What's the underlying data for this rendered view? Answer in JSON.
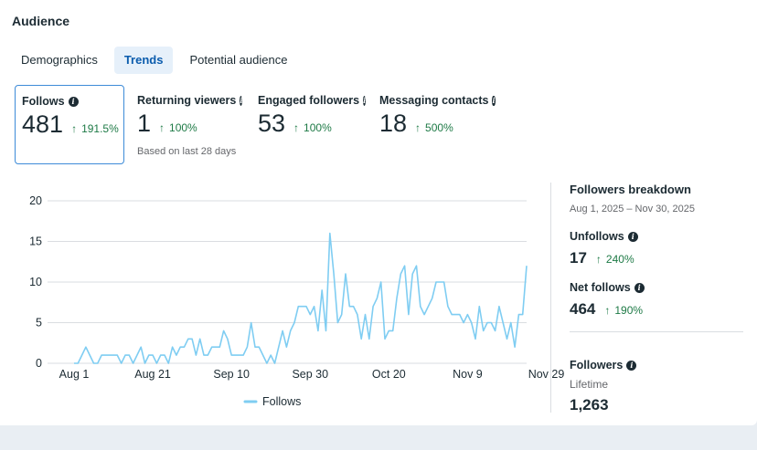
{
  "page": {
    "title": "Audience"
  },
  "tabs": [
    {
      "label": "Demographics",
      "active": false
    },
    {
      "label": "Trends",
      "active": true
    },
    {
      "label": "Potential audience",
      "active": false
    }
  ],
  "metrics": [
    {
      "label": "Follows",
      "value": "481",
      "change": "191.5%",
      "selected": true,
      "note": ""
    },
    {
      "label": "Returning viewers",
      "value": "1",
      "change": "100%",
      "selected": false,
      "note": "Based on last 28 days"
    },
    {
      "label": "Engaged followers",
      "value": "53",
      "change": "100%",
      "selected": false,
      "note": ""
    },
    {
      "label": "Messaging contacts",
      "value": "18",
      "change": "500%",
      "selected": false,
      "note": ""
    }
  ],
  "chart_data": {
    "type": "line",
    "title": "",
    "xlabel": "",
    "ylabel": "",
    "ylim": [
      0,
      20
    ],
    "yticks": [
      0,
      5,
      10,
      15,
      20
    ],
    "xtick_labels": [
      {
        "label": "Aug 1",
        "index": 0
      },
      {
        "label": "Aug 21",
        "index": 20
      },
      {
        "label": "Sep 10",
        "index": 40
      },
      {
        "label": "Sep 30",
        "index": 60
      },
      {
        "label": "Oct 20",
        "index": 80
      },
      {
        "label": "Nov 9",
        "index": 100
      },
      {
        "label": "Nov 29",
        "index": 120
      }
    ],
    "grid": true,
    "legend": "bottom-center",
    "color": "#7fcdf2",
    "series": [
      {
        "name": "Follows",
        "values": [
          0,
          0,
          1,
          2,
          1,
          0,
          0,
          1,
          1,
          1,
          1,
          1,
          0,
          1,
          1,
          0,
          1,
          2,
          0,
          1,
          1,
          0,
          1,
          1,
          0,
          2,
          1,
          2,
          2,
          3,
          3,
          1,
          3,
          1,
          1,
          2,
          2,
          2,
          4,
          3,
          1,
          1,
          1,
          1,
          2,
          5,
          2,
          2,
          1,
          0,
          1,
          0,
          2,
          4,
          2,
          4,
          5,
          7,
          7,
          7,
          6,
          7,
          4,
          9,
          4,
          16,
          11,
          5,
          6,
          11,
          7,
          7,
          6,
          3,
          6,
          3,
          7,
          8,
          10,
          3,
          4,
          4,
          8,
          11,
          12,
          6,
          11,
          12,
          7,
          6,
          7,
          8,
          10,
          10,
          10,
          7,
          6,
          6,
          6,
          5,
          6,
          5,
          3,
          7,
          4,
          5,
          5,
          4,
          7,
          5,
          3,
          5,
          2,
          6,
          6,
          12
        ]
      }
    ]
  },
  "breakdown": {
    "title": "Followers breakdown",
    "date_range": "Aug 1, 2025 – Nov 30, 2025",
    "unfollows": {
      "label": "Unfollows",
      "value": "17",
      "change": "240%"
    },
    "net_follows": {
      "label": "Net follows",
      "value": "464",
      "change": "190%"
    },
    "followers": {
      "label": "Followers",
      "sublabel": "Lifetime",
      "value": "1,263"
    }
  },
  "colors": {
    "accent": "#0b5cad",
    "positive": "#1e7a46",
    "line": "#7fcdf2",
    "grid": "#dadde1"
  }
}
